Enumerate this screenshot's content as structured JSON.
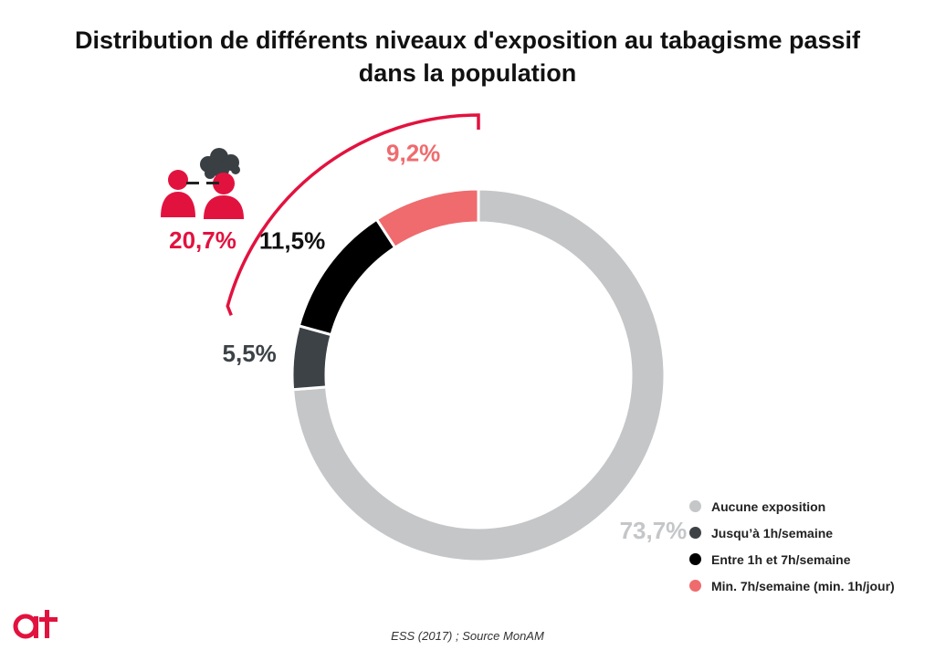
{
  "title_line1": "Distribution de différents niveaux d'exposition au tabagisme passif",
  "title_line2": "dans la population",
  "chart_data": {
    "type": "pie",
    "style": "donut",
    "title": "Distribution de différents niveaux d'exposition au tabagisme passif dans la population",
    "slices": [
      {
        "name": "Aucune exposition",
        "value": 73.7,
        "label": "73,7%",
        "color": "#c4c6c8",
        "label_color": "#c4c6c8"
      },
      {
        "name": "Jusqu'à 1h/semaine",
        "value": 5.5,
        "label": "5,5%",
        "color": "#3d4247",
        "label_color": "#3d4247"
      },
      {
        "name": "Entre 1h et 7h/semaine",
        "value": 11.5,
        "label": "11,5%",
        "color": "#000000",
        "label_color": "#111111"
      },
      {
        "name": "Min. 7h/semaine (min. 1h/jour)",
        "value": 9.2,
        "label": "9,2%",
        "color": "#ef6b6e",
        "label_color": "#ef6b6e"
      }
    ],
    "total_exposed_label": "20,7%",
    "accent_color": "#e2123f",
    "legend_position": "bottom-right"
  },
  "legend": [
    {
      "label": "Aucune exposition",
      "color": "#c4c6c8"
    },
    {
      "label": "Jusqu’à 1h/semaine",
      "color": "#3d4247"
    },
    {
      "label": "Entre 1h et 7h/semaine",
      "color": "#000000"
    },
    {
      "label": "Min. 7h/semaine (min. 1h/jour)",
      "color": "#ef6b6e"
    }
  ],
  "source": "ESS (2017) ; Source MonAM",
  "logo_text": "at",
  "icons": [
    "smoking-people-icon",
    "smoke-cloud-icon"
  ]
}
